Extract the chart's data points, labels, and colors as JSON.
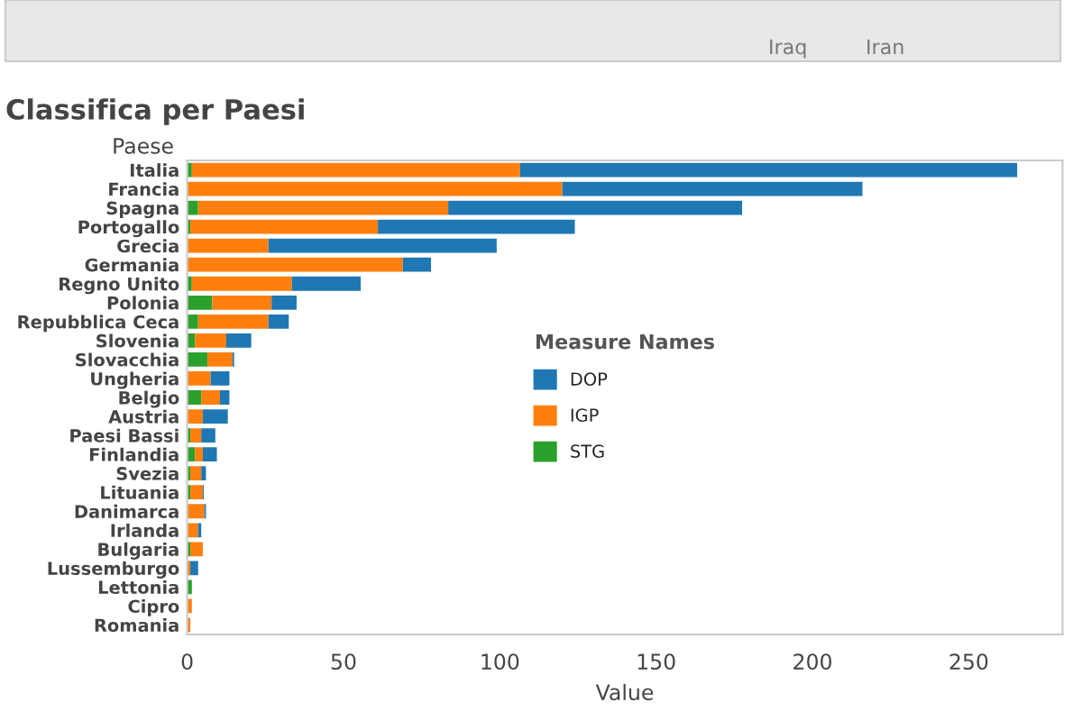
{
  "chart_data": {
    "type": "bar",
    "orientation": "horizontal",
    "stacked": true,
    "title": "Classifica per Paesi",
    "ylabel": "Paese",
    "xlabel": "Value",
    "legend_title": "Measure Names",
    "legend": "center",
    "categories": [
      "Italia",
      "Francia",
      "Spagna",
      "Portogallo",
      "Grecia",
      "Germania",
      "Regno Unito",
      "Polonia",
      "Repubblica Ceca",
      "Slovenia",
      "Slovacchia",
      "Ungheria",
      "Belgio",
      "Austria",
      "Paesi Bassi",
      "Finlandia",
      "Svezia",
      "Lituania",
      "Danimarca",
      "Irlanda",
      "Bulgaria",
      "Lussemburgo",
      "Lettonia",
      "Cipro",
      "Romania"
    ],
    "series": [
      {
        "name": "STG",
        "color": "#2ca02c",
        "values": [
          1.5,
          null,
          3.5,
          1,
          null,
          null,
          1.5,
          8,
          3.5,
          2.5,
          6.5,
          null,
          4.5,
          null,
          1,
          2.5,
          1,
          1,
          null,
          null,
          1,
          null,
          1.5,
          null,
          null
        ]
      },
      {
        "name": "IGP",
        "color": "#ff7f0e",
        "values": [
          105,
          120,
          80,
          60,
          26,
          69,
          32,
          19,
          22.5,
          10,
          8,
          7.5,
          6,
          5,
          3.5,
          2.5,
          3.5,
          4,
          5.5,
          3.5,
          4,
          1,
          null,
          1.5,
          1
        ]
      },
      {
        "name": "DOP",
        "color": "#1f77b4",
        "values": [
          159,
          96,
          94,
          63,
          73,
          9,
          22,
          8,
          6.5,
          8,
          0.5,
          6,
          3,
          8,
          4.5,
          4.5,
          1.5,
          0.3,
          0.5,
          1,
          null,
          2.5,
          null,
          null,
          null
        ]
      }
    ],
    "xlim": [
      0,
      280
    ],
    "xticks": [
      0,
      50,
      100,
      150,
      200,
      250
    ],
    "annotations": [
      "Iraq",
      "Iran"
    ]
  }
}
